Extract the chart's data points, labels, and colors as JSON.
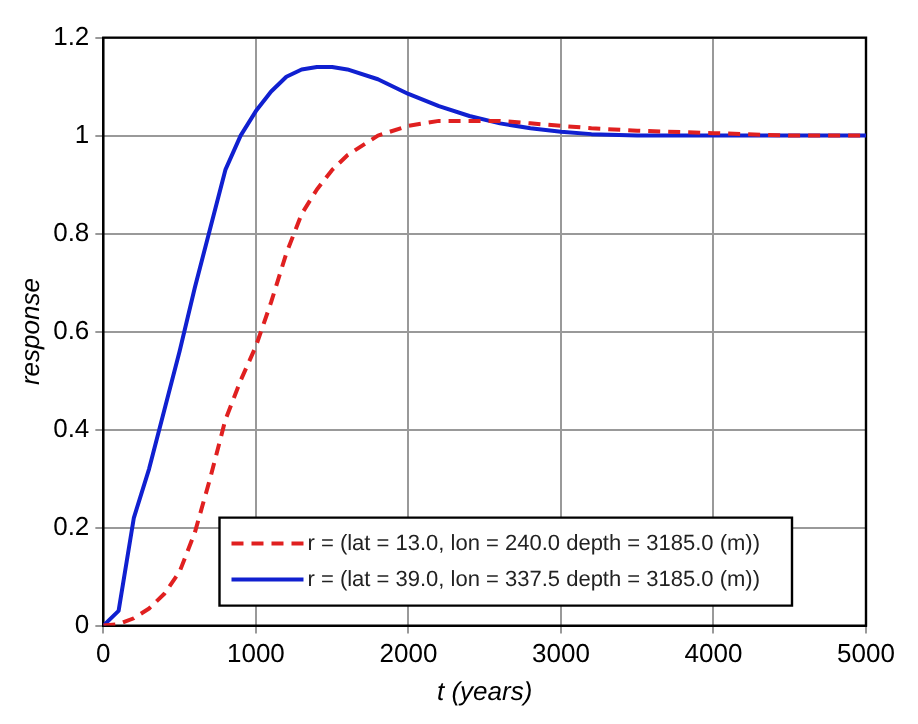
{
  "chart_data": {
    "type": "line",
    "xlabel": "t (years)",
    "ylabel": "response",
    "xlim": [
      0,
      5000
    ],
    "ylim": [
      0,
      1.2
    ],
    "xticks": [
      0,
      1000,
      2000,
      3000,
      4000,
      5000
    ],
    "yticks": [
      0,
      0.2,
      0.4,
      0.6,
      0.8,
      1,
      1.2
    ],
    "grid": true,
    "legend": "bottom right",
    "marker": "none",
    "x": [
      0,
      100,
      200,
      300,
      400,
      500,
      600,
      700,
      800,
      900,
      1000,
      1100,
      1200,
      1300,
      1400,
      1500,
      1600,
      1800,
      2000,
      2200,
      2400,
      2600,
      2800,
      3000,
      3200,
      3500,
      4000,
      4500,
      5000
    ],
    "series": [
      {
        "name": "r = (lat = 13.0, lon = 240.0 depth = 3185.0 (m))",
        "color": "#e02020",
        "line_style": "dashed",
        "values": [
          0,
          0.003,
          0.015,
          0.035,
          0.065,
          0.11,
          0.19,
          0.3,
          0.42,
          0.5,
          0.57,
          0.66,
          0.76,
          0.84,
          0.89,
          0.93,
          0.96,
          1.0,
          1.02,
          1.03,
          1.03,
          1.03,
          1.025,
          1.02,
          1.015,
          1.01,
          1.005,
          1.0,
          1.0
        ]
      },
      {
        "name": "r = (lat = 39.0, lon = 337.5 depth = 3185.0 (m))",
        "color": "#1020d0",
        "line_style": "solid",
        "values": [
          0,
          0.03,
          0.22,
          0.32,
          0.44,
          0.56,
          0.69,
          0.81,
          0.93,
          1.0,
          1.05,
          1.09,
          1.12,
          1.135,
          1.14,
          1.14,
          1.135,
          1.115,
          1.085,
          1.06,
          1.04,
          1.025,
          1.015,
          1.008,
          1.003,
          1.0,
          1.0,
          1.0,
          1.0
        ]
      }
    ]
  }
}
